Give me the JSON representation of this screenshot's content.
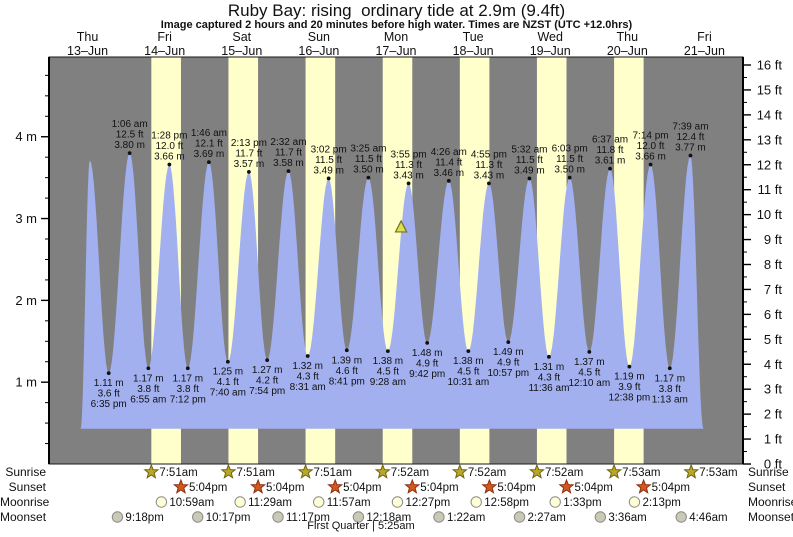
{
  "title": "Ruby Bay: rising  ordinary tide at 2.9m (9.4ft)",
  "subtitle": "Image captured 2 hours and 20 minutes before high water. Times are NZST (UTC +12.0hrs)",
  "moon_phase": "First Quarter | 5:25am",
  "chart_data": {
    "type": "area",
    "title": "Ruby Bay: rising  ordinary tide at 2.9m (9.4ft)",
    "ylabel_left_unit": "m",
    "ylabel_right_unit": "ft",
    "ylim_ft": [
      0,
      16
    ],
    "days": [
      {
        "dow": "Thu",
        "date": "13–Jun"
      },
      {
        "dow": "Fri",
        "date": "14–Jun"
      },
      {
        "dow": "Sat",
        "date": "15–Jun"
      },
      {
        "dow": "Sun",
        "date": "16–Jun"
      },
      {
        "dow": "Mon",
        "date": "17–Jun"
      },
      {
        "dow": "Tue",
        "date": "18–Jun"
      },
      {
        "dow": "Wed",
        "date": "19–Jun"
      },
      {
        "dow": "Thu",
        "date": "20–Jun"
      },
      {
        "dow": "Fri",
        "date": "21–Jun"
      }
    ],
    "y_left_ticks": [
      {
        "v": 1,
        "label": "1 m"
      },
      {
        "v": 2,
        "label": "2 m"
      },
      {
        "v": 3,
        "label": "3 m"
      },
      {
        "v": 4,
        "label": "4 m"
      }
    ],
    "y_right_ticks": [
      {
        "v": 0,
        "label": "0 ft"
      },
      {
        "v": 1,
        "label": "1 ft"
      },
      {
        "v": 2,
        "label": "2 ft"
      },
      {
        "v": 3,
        "label": "3 ft"
      },
      {
        "v": 4,
        "label": "4 ft"
      },
      {
        "v": 5,
        "label": "5 ft"
      },
      {
        "v": 6,
        "label": "6 ft"
      },
      {
        "v": 7,
        "label": "7 ft"
      },
      {
        "v": 8,
        "label": "8 ft"
      },
      {
        "v": 9,
        "label": "9 ft"
      },
      {
        "v": 10,
        "label": "10 ft"
      },
      {
        "v": 11,
        "label": "11 ft"
      },
      {
        "v": 12,
        "label": "12 ft"
      },
      {
        "v": 13,
        "label": "13 ft"
      },
      {
        "v": 14,
        "label": "14 ft"
      },
      {
        "v": 15,
        "label": "15 ft"
      },
      {
        "v": 16,
        "label": "16 ft"
      }
    ],
    "extremes": [
      {
        "kind": "E",
        "d": 0,
        "min": 590,
        "h": 0.43
      },
      {
        "kind": "H",
        "d": 0,
        "min": 762,
        "h": 3.71
      },
      {
        "kind": "L",
        "d": 0,
        "min": 1115,
        "h": 1.11,
        "m": "1.11 m",
        "ft": "3.6 ft",
        "time": "6:35 pm"
      },
      {
        "kind": "H",
        "d": 1,
        "min": 66,
        "h": 3.8,
        "m": "3.80 m",
        "ft": "12.5 ft",
        "time": "1:06 am"
      },
      {
        "kind": "L",
        "d": 1,
        "min": 415,
        "h": 1.17,
        "m": "1.17 m",
        "ft": "3.8 ft",
        "time": "6:55 am"
      },
      {
        "kind": "H",
        "d": 1,
        "min": 808,
        "h": 3.66,
        "m": "3.66 m",
        "ft": "12.0 ft",
        "time": "1:28 pm"
      },
      {
        "kind": "L",
        "d": 1,
        "min": 1152,
        "h": 1.17,
        "m": "1.17 m",
        "ft": "3.8 ft",
        "time": "7:12 pm"
      },
      {
        "kind": "H",
        "d": 2,
        "min": 106,
        "h": 3.69,
        "m": "3.69 m",
        "ft": "12.1 ft",
        "time": "1:46 am"
      },
      {
        "kind": "L",
        "d": 2,
        "min": 460,
        "h": 1.25,
        "m": "1.25 m",
        "ft": "4.1 ft",
        "time": "7:40 am"
      },
      {
        "kind": "H",
        "d": 2,
        "min": 853,
        "h": 3.57,
        "m": "3.57 m",
        "ft": "11.7 ft",
        "time": "2:13 pm"
      },
      {
        "kind": "L",
        "d": 2,
        "min": 1194,
        "h": 1.27,
        "m": "1.27 m",
        "ft": "4.2 ft",
        "time": "7:54 pm"
      },
      {
        "kind": "H",
        "d": 3,
        "min": 152,
        "h": 3.58,
        "m": "3.58 m",
        "ft": "11.7 ft",
        "time": "2:32 am"
      },
      {
        "kind": "L",
        "d": 3,
        "min": 511,
        "h": 1.32,
        "m": "1.32 m",
        "ft": "4.3 ft",
        "time": "8:31 am"
      },
      {
        "kind": "H",
        "d": 3,
        "min": 902,
        "h": 3.49,
        "m": "3.49 m",
        "ft": "11.5 ft",
        "time": "3:02 pm"
      },
      {
        "kind": "L",
        "d": 3,
        "min": 1241,
        "h": 1.39,
        "m": "1.39 m",
        "ft": "4.6 ft",
        "time": "8:41 pm"
      },
      {
        "kind": "H",
        "d": 4,
        "min": 205,
        "h": 3.5,
        "m": "3.50 m",
        "ft": "11.5 ft",
        "time": "3:25 am"
      },
      {
        "kind": "L",
        "d": 4,
        "min": 568,
        "h": 1.38,
        "m": "1.38 m",
        "ft": "4.5 ft",
        "time": "9:28 am"
      },
      {
        "kind": "H",
        "d": 4,
        "min": 955,
        "h": 3.43,
        "m": "3.43 m",
        "ft": "11.3 ft",
        "time": "3:55 pm"
      },
      {
        "kind": "L",
        "d": 4,
        "min": 1302,
        "h": 1.48,
        "m": "1.48 m",
        "ft": "4.9 ft",
        "time": "9:42 pm"
      },
      {
        "kind": "H",
        "d": 5,
        "min": 266,
        "h": 3.46,
        "m": "3.46 m",
        "ft": "11.4 ft",
        "time": "4:26 am"
      },
      {
        "kind": "L",
        "d": 5,
        "min": 631,
        "h": 1.38,
        "m": "1.38 m",
        "ft": "4.5 ft",
        "time": "10:31 am"
      },
      {
        "kind": "H",
        "d": 5,
        "min": 1015,
        "h": 3.43,
        "m": "3.43 m",
        "ft": "11.3 ft",
        "time": "4:55 pm"
      },
      {
        "kind": "L",
        "d": 5,
        "min": 1377,
        "h": 1.49,
        "m": "1.49 m",
        "ft": "4.9 ft",
        "time": "10:57 pm"
      },
      {
        "kind": "H",
        "d": 6,
        "min": 332,
        "h": 3.49,
        "m": "3.49 m",
        "ft": "11.5 ft",
        "time": "5:32 am"
      },
      {
        "kind": "L",
        "d": 6,
        "min": 696,
        "h": 1.31,
        "m": "1.31 m",
        "ft": "4.3 ft",
        "time": "11:36 am"
      },
      {
        "kind": "H",
        "d": 6,
        "min": 1083,
        "h": 3.5,
        "m": "3.50 m",
        "ft": "11.5 ft",
        "time": "6:03 pm"
      },
      {
        "kind": "L",
        "d": 7,
        "min": 10,
        "h": 1.37,
        "m": "1.37 m",
        "ft": "4.5 ft",
        "time": "12:10 am"
      },
      {
        "kind": "H",
        "d": 7,
        "min": 397,
        "h": 3.61,
        "m": "3.61 m",
        "ft": "11.8 ft",
        "time": "6:37 am"
      },
      {
        "kind": "L",
        "d": 7,
        "min": 758,
        "h": 1.19,
        "m": "1.19 m",
        "ft": "3.9 ft",
        "time": "12:38 pm"
      },
      {
        "kind": "H",
        "d": 7,
        "min": 1154,
        "h": 3.66,
        "m": "3.66 m",
        "ft": "12.0 ft",
        "time": "7:14 pm"
      },
      {
        "kind": "L",
        "d": 8,
        "min": 73,
        "h": 1.17,
        "m": "1.17 m",
        "ft": "3.8 ft",
        "time": "1:13 am"
      },
      {
        "kind": "H",
        "d": 8,
        "min": 459,
        "h": 3.77,
        "m": "3.77 m",
        "ft": "12.4 ft",
        "time": "7:39 am"
      },
      {
        "kind": "E",
        "d": 8,
        "min": 700,
        "h": 0.43
      }
    ],
    "current_marker": {
      "d": 4,
      "min": 815,
      "h": 2.9,
      "note": "rising tide at 2.9m"
    },
    "colors": {
      "plot_bg": "#808080",
      "daylight_band": "#ffffcc",
      "tide_fill": "#a2b0ef",
      "day_label": "#cc2222",
      "marker_fill": "#dede52",
      "marker_border": "#77711c"
    }
  },
  "sun_moon": {
    "rows": [
      {
        "label": "Sunrise",
        "icon": "star",
        "color": "#b9a727",
        "border": "#6e6414",
        "events": [
          {
            "d": 1,
            "min": 471,
            "t": "7:51am"
          },
          {
            "d": 2,
            "min": 471,
            "t": "7:51am"
          },
          {
            "d": 3,
            "min": 471,
            "t": "7:51am"
          },
          {
            "d": 4,
            "min": 472,
            "t": "7:52am"
          },
          {
            "d": 5,
            "min": 472,
            "t": "7:52am"
          },
          {
            "d": 6,
            "min": 472,
            "t": "7:52am"
          },
          {
            "d": 7,
            "min": 473,
            "t": "7:53am"
          },
          {
            "d": 8,
            "min": 473,
            "t": "7:53am"
          }
        ]
      },
      {
        "label": "Sunset",
        "icon": "star",
        "color": "#d4581e",
        "border": "#8c2f10",
        "events": [
          {
            "d": 1,
            "min": 1024,
            "t": "5:04pm"
          },
          {
            "d": 2,
            "min": 1024,
            "t": "5:04pm"
          },
          {
            "d": 3,
            "min": 1024,
            "t": "5:04pm"
          },
          {
            "d": 4,
            "min": 1024,
            "t": "5:04pm"
          },
          {
            "d": 5,
            "min": 1024,
            "t": "5:04pm"
          },
          {
            "d": 6,
            "min": 1024,
            "t": "5:04pm"
          },
          {
            "d": 7,
            "min": 1024,
            "t": "5:04pm"
          }
        ]
      },
      {
        "label": "Moonrise",
        "icon": "circle",
        "color": "#ffffd6",
        "border": "#8a8a8a",
        "events": [
          {
            "d": 1,
            "min": 659,
            "t": "10:59am"
          },
          {
            "d": 2,
            "min": 689,
            "t": "11:29am"
          },
          {
            "d": 3,
            "min": 717,
            "t": "11:57am"
          },
          {
            "d": 4,
            "min": 747,
            "t": "12:27pm"
          },
          {
            "d": 5,
            "min": 778,
            "t": "12:58pm"
          },
          {
            "d": 6,
            "min": 813,
            "t": "1:33pm"
          },
          {
            "d": 7,
            "min": 853,
            "t": "2:13pm"
          }
        ]
      },
      {
        "label": "Moonset",
        "icon": "circle",
        "color": "#c9c9b4",
        "border": "#8a8a8a",
        "events": [
          {
            "d": 0,
            "min": 1278,
            "t": "9:18pm"
          },
          {
            "d": 1,
            "min": 1337,
            "t": "10:17pm"
          },
          {
            "d": 2,
            "min": 1397,
            "t": "11:17pm"
          },
          {
            "d": 4,
            "min": 18,
            "t": "12:18am"
          },
          {
            "d": 5,
            "min": 82,
            "t": "1:22am"
          },
          {
            "d": 6,
            "min": 147,
            "t": "2:27am"
          },
          {
            "d": 7,
            "min": 216,
            "t": "3:36am"
          },
          {
            "d": 8,
            "min": 286,
            "t": "4:46am"
          }
        ]
      }
    ]
  }
}
